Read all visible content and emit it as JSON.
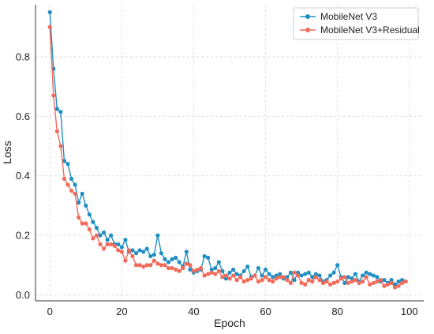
{
  "chart_data": {
    "type": "line",
    "title": "",
    "xlabel": "Epoch",
    "ylabel": "Loss",
    "xlim": [
      -4,
      104
    ],
    "ylim": [
      -0.02,
      0.975
    ],
    "xticks": [
      0,
      20,
      40,
      60,
      80,
      100
    ],
    "yticks": [
      0.0,
      0.2,
      0.4,
      0.6,
      0.8
    ],
    "ytick_labels": [
      "0.0",
      "0.2",
      "0.4",
      "0.6",
      "0.8"
    ],
    "grid": true,
    "legend_position": "top-right",
    "x": [
      0,
      1,
      2,
      3,
      4,
      5,
      6,
      7,
      8,
      9,
      10,
      11,
      12,
      13,
      14,
      15,
      16,
      17,
      18,
      19,
      20,
      21,
      22,
      23,
      24,
      25,
      26,
      27,
      28,
      29,
      30,
      31,
      32,
      33,
      34,
      35,
      36,
      37,
      38,
      39,
      40,
      41,
      42,
      43,
      44,
      45,
      46,
      47,
      48,
      49,
      50,
      51,
      52,
      53,
      54,
      55,
      56,
      57,
      58,
      59,
      60,
      61,
      62,
      63,
      64,
      65,
      66,
      67,
      68,
      69,
      70,
      71,
      72,
      73,
      74,
      75,
      76,
      77,
      78,
      79,
      80,
      81,
      82,
      83,
      84,
      85,
      86,
      87,
      88,
      89,
      90,
      91,
      92,
      93,
      94,
      95,
      96,
      97,
      98,
      99
    ],
    "series": [
      {
        "name": "MobileNet V3",
        "color": "#1f8fc2",
        "values": [
          0.95,
          0.76,
          0.625,
          0.615,
          0.45,
          0.44,
          0.39,
          0.37,
          0.31,
          0.34,
          0.3,
          0.27,
          0.245,
          0.225,
          0.2,
          0.21,
          0.185,
          0.2,
          0.17,
          0.17,
          0.16,
          0.185,
          0.145,
          0.15,
          0.14,
          0.15,
          0.145,
          0.155,
          0.13,
          0.135,
          0.2,
          0.14,
          0.12,
          0.11,
          0.12,
          0.125,
          0.11,
          0.095,
          0.145,
          0.085,
          0.075,
          0.08,
          0.085,
          0.13,
          0.125,
          0.085,
          0.09,
          0.11,
          0.08,
          0.055,
          0.075,
          0.085,
          0.07,
          0.065,
          0.08,
          0.095,
          0.06,
          0.065,
          0.09,
          0.065,
          0.085,
          0.07,
          0.06,
          0.065,
          0.07,
          0.055,
          0.06,
          0.075,
          0.05,
          0.075,
          0.065,
          0.07,
          0.075,
          0.06,
          0.07,
          0.065,
          0.045,
          0.05,
          0.065,
          0.075,
          0.1,
          0.06,
          0.04,
          0.06,
          0.055,
          0.07,
          0.045,
          0.065,
          0.075,
          0.07,
          0.065,
          0.06,
          0.045,
          0.05,
          0.04,
          0.05,
          0.035,
          0.045,
          0.05,
          0.045
        ]
      },
      {
        "name": "MobileNet V3+Residual",
        "color": "#f26a5a",
        "values": [
          0.9,
          0.67,
          0.55,
          0.5,
          0.39,
          0.37,
          0.35,
          0.34,
          0.26,
          0.24,
          0.24,
          0.22,
          0.19,
          0.2,
          0.17,
          0.155,
          0.17,
          0.17,
          0.165,
          0.15,
          0.145,
          0.115,
          0.15,
          0.13,
          0.1,
          0.1,
          0.095,
          0.1,
          0.1,
          0.115,
          0.105,
          0.1,
          0.1,
          0.09,
          0.09,
          0.085,
          0.08,
          0.09,
          0.105,
          0.1,
          0.08,
          0.085,
          0.09,
          0.065,
          0.07,
          0.075,
          0.07,
          0.08,
          0.06,
          0.065,
          0.055,
          0.065,
          0.05,
          0.06,
          0.045,
          0.05,
          0.055,
          0.065,
          0.045,
          0.05,
          0.06,
          0.05,
          0.045,
          0.055,
          0.06,
          0.06,
          0.05,
          0.04,
          0.075,
          0.065,
          0.04,
          0.035,
          0.05,
          0.045,
          0.06,
          0.05,
          0.04,
          0.045,
          0.035,
          0.04,
          0.045,
          0.055,
          0.06,
          0.04,
          0.045,
          0.05,
          0.04,
          0.045,
          0.06,
          0.035,
          0.04,
          0.045,
          0.05,
          0.03,
          0.035,
          0.04,
          0.025,
          0.03,
          0.04,
          0.045
        ]
      }
    ]
  }
}
